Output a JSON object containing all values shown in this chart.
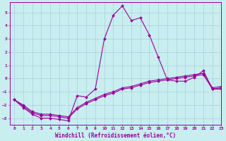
{
  "title": "",
  "xlabel": "Windchill (Refroidissement éolien,°C)",
  "ylabel": "",
  "bg_color": "#c8eef0",
  "grid_color": "#a8d0d8",
  "line_color": "#990099",
  "xlim": [
    -0.5,
    23
  ],
  "ylim": [
    -3.5,
    5.8
  ],
  "xticks": [
    0,
    1,
    2,
    3,
    4,
    5,
    6,
    7,
    8,
    9,
    10,
    11,
    12,
    13,
    14,
    15,
    16,
    17,
    18,
    19,
    20,
    21,
    22,
    23
  ],
  "yticks": [
    -3,
    -2,
    -1,
    0,
    1,
    2,
    3,
    4,
    5
  ],
  "series1_x": [
    0,
    1,
    2,
    3,
    4,
    5,
    6,
    7,
    8,
    9,
    10,
    11,
    12,
    13,
    14,
    15,
    16,
    17,
    18,
    19,
    20,
    21,
    22,
    23
  ],
  "series1_y": [
    -1.6,
    -2.2,
    -2.7,
    -3.0,
    -3.0,
    -3.1,
    -3.2,
    -1.3,
    -1.4,
    -0.8,
    3.0,
    4.8,
    5.5,
    4.4,
    4.6,
    3.3,
    1.6,
    -0.1,
    -0.2,
    -0.2,
    0.1,
    0.6,
    -0.8,
    -0.8
  ],
  "series2_x": [
    0,
    1,
    2,
    3,
    4,
    5,
    6,
    7,
    8,
    9,
    10,
    11,
    12,
    13,
    14,
    15,
    16,
    17,
    18,
    19,
    20,
    21,
    22,
    23
  ],
  "series2_y": [
    -1.6,
    -2.1,
    -2.6,
    -2.8,
    -2.8,
    -2.9,
    -3.0,
    -2.3,
    -1.9,
    -1.6,
    -1.3,
    -1.1,
    -0.8,
    -0.7,
    -0.5,
    -0.3,
    -0.2,
    -0.1,
    0.0,
    0.1,
    0.2,
    0.3,
    -0.8,
    -0.7
  ],
  "series3_x": [
    0,
    1,
    2,
    3,
    4,
    5,
    6,
    7,
    8,
    9,
    10,
    11,
    12,
    13,
    14,
    15,
    16,
    17,
    18,
    19,
    20,
    21,
    22,
    23
  ],
  "series3_y": [
    -1.6,
    -2.0,
    -2.5,
    -2.7,
    -2.7,
    -2.8,
    -2.9,
    -2.2,
    -1.8,
    -1.5,
    -1.2,
    -1.0,
    -0.7,
    -0.6,
    -0.4,
    -0.2,
    -0.1,
    0.0,
    0.1,
    0.2,
    0.3,
    0.4,
    -0.7,
    -0.6
  ],
  "marker": "D",
  "marker_size": 2.0,
  "line_width": 0.8,
  "xlabel_fontsize": 5.5,
  "tick_fontsize": 4.5
}
